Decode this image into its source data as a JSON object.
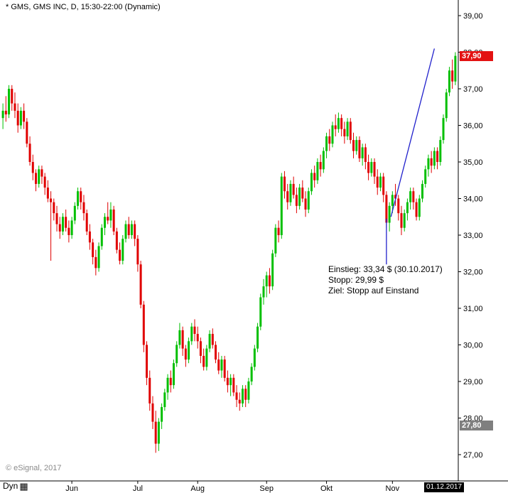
{
  "header": {
    "title": "* GMS, GMS INC, D, 15:30-22:00 (Dynamic)"
  },
  "footer": {
    "copyright": "© eSignal, 2017",
    "mode_label": "Dyn",
    "mode_icon": "▦",
    "date_tag": "01.12.2017"
  },
  "annotation": {
    "lines": [
      "Einstieg: 33,34 $ (30.10.2017)",
      "Stopp: 29,99 $",
      "Ziel: Stopp auf Einstand"
    ]
  },
  "tags": {
    "last": {
      "label": "37,90",
      "value": 37.9,
      "color": "#e31212"
    },
    "low": {
      "label": "27,80",
      "value": 27.8,
      "color": "#7f7f7f"
    }
  },
  "chart_data": {
    "type": "candlestick",
    "title": "GMS, GMS INC, D, 15:30-22:00 (Dynamic)",
    "symbol": "GMS",
    "interval": "D",
    "last_price": 37.9,
    "low_marker_price": 27.8,
    "colors": {
      "up": "#00bf00",
      "down": "#e00000",
      "line": "#2121cc",
      "axis": "#000000"
    },
    "y_axis": {
      "min": 27,
      "max": 39,
      "tick_step": 1,
      "ticks": [
        {
          "value": 39,
          "label": "39,00"
        },
        {
          "value": 38,
          "label": "38,00"
        },
        {
          "value": 37,
          "label": "37,00"
        },
        {
          "value": 36,
          "label": "36,00"
        },
        {
          "value": 35,
          "label": "35,00"
        },
        {
          "value": 34,
          "label": "34,00"
        },
        {
          "value": 33,
          "label": "33,00"
        },
        {
          "value": 32,
          "label": "32,00"
        },
        {
          "value": 31,
          "label": "31,00"
        },
        {
          "value": 30,
          "label": "30,00"
        },
        {
          "value": 29,
          "label": "29,00"
        },
        {
          "value": 28,
          "label": "28,00"
        },
        {
          "value": 27,
          "label": "27,00"
        }
      ]
    },
    "x_axis": {
      "months": [
        {
          "label": "Jun",
          "bar": 23
        },
        {
          "label": "Jul",
          "bar": 45
        },
        {
          "label": "Aug",
          "bar": 65
        },
        {
          "label": "Sep",
          "bar": 88
        },
        {
          "label": "Okt",
          "bar": 108
        },
        {
          "label": "Nov",
          "bar": 130
        }
      ],
      "end_date_label": "01.12.2017"
    },
    "overlays": {
      "trendline": {
        "from": {
          "bar": 129.5,
          "price": 33.5
        },
        "to": {
          "bar": 144,
          "price": 38.1
        }
      },
      "event_line": {
        "bar": 128,
        "price_from": 33.45,
        "price_to": 32.2
      }
    },
    "candles": [
      [
        36.2,
        36.6,
        35.9,
        36.4
      ],
      [
        36.4,
        36.8,
        36.1,
        36.3
      ],
      [
        36.3,
        37.1,
        36.2,
        37.0
      ],
      [
        37.0,
        37.1,
        36.4,
        36.6
      ],
      [
        36.6,
        36.9,
        36.2,
        36.4
      ],
      [
        36.4,
        36.6,
        35.8,
        36.0
      ],
      [
        36.0,
        36.5,
        35.9,
        36.4
      ],
      [
        36.4,
        36.6,
        35.9,
        36.1
      ],
      [
        36.1,
        36.2,
        35.4,
        35.5
      ],
      [
        35.5,
        35.7,
        34.9,
        35.0
      ],
      [
        35.0,
        35.2,
        34.5,
        34.7
      ],
      [
        34.7,
        34.8,
        34.2,
        34.4
      ],
      [
        34.4,
        34.9,
        34.3,
        34.8
      ],
      [
        34.8,
        34.9,
        34.4,
        34.6
      ],
      [
        34.6,
        34.7,
        34.1,
        34.3
      ],
      [
        34.3,
        34.5,
        33.9,
        34.0
      ],
      [
        34.0,
        34.2,
        32.3,
        33.9
      ],
      [
        33.9,
        34.0,
        33.4,
        33.6
      ],
      [
        33.6,
        33.8,
        33.1,
        33.3
      ],
      [
        33.3,
        33.5,
        32.9,
        33.1
      ],
      [
        33.1,
        33.6,
        33.0,
        33.5
      ],
      [
        33.5,
        33.7,
        33.1,
        33.2
      ],
      [
        33.2,
        33.4,
        32.8,
        33.0
      ],
      [
        33.0,
        33.5,
        32.9,
        33.4
      ],
      [
        33.4,
        33.9,
        33.3,
        33.8
      ],
      [
        33.8,
        34.3,
        33.7,
        34.2
      ],
      [
        34.2,
        34.3,
        33.7,
        33.9
      ],
      [
        33.9,
        34.1,
        33.4,
        33.6
      ],
      [
        33.6,
        33.7,
        33.0,
        33.1
      ],
      [
        33.1,
        33.3,
        32.6,
        32.8
      ],
      [
        32.8,
        32.9,
        32.2,
        32.4
      ],
      [
        32.4,
        32.6,
        31.9,
        32.1
      ],
      [
        32.1,
        32.8,
        32.0,
        32.7
      ],
      [
        32.7,
        33.3,
        32.6,
        33.2
      ],
      [
        33.2,
        33.6,
        33.0,
        33.5
      ],
      [
        33.5,
        33.9,
        33.3,
        33.4
      ],
      [
        33.4,
        33.9,
        33.2,
        33.7
      ],
      [
        33.7,
        33.8,
        33.0,
        33.1
      ],
      [
        33.1,
        33.2,
        32.5,
        32.6
      ],
      [
        32.6,
        32.8,
        32.2,
        32.3
      ],
      [
        32.3,
        33.0,
        32.2,
        32.9
      ],
      [
        32.9,
        33.4,
        32.8,
        33.3
      ],
      [
        33.3,
        33.5,
        32.9,
        33.0
      ],
      [
        33.0,
        33.4,
        32.9,
        33.3
      ],
      [
        33.3,
        33.4,
        32.7,
        32.9
      ],
      [
        32.9,
        33.0,
        32.0,
        32.2
      ],
      [
        32.2,
        32.3,
        31.0,
        31.1
      ],
      [
        31.1,
        31.2,
        29.8,
        30.0
      ],
      [
        30.0,
        30.1,
        28.9,
        29.1
      ],
      [
        29.1,
        29.3,
        28.2,
        28.4
      ],
      [
        28.4,
        28.6,
        27.7,
        27.9
      ],
      [
        27.9,
        28.2,
        27.05,
        27.3
      ],
      [
        27.3,
        28.0,
        27.1,
        27.9
      ],
      [
        27.9,
        28.4,
        27.7,
        28.3
      ],
      [
        28.3,
        28.8,
        28.2,
        28.7
      ],
      [
        28.7,
        29.2,
        28.5,
        29.1
      ],
      [
        29.1,
        29.3,
        28.7,
        28.9
      ],
      [
        28.9,
        29.6,
        28.8,
        29.5
      ],
      [
        29.5,
        30.1,
        29.4,
        30.0
      ],
      [
        30.0,
        30.6,
        29.9,
        30.4
      ],
      [
        30.4,
        30.5,
        29.7,
        29.9
      ],
      [
        29.9,
        30.0,
        29.4,
        29.6
      ],
      [
        29.6,
        30.2,
        29.5,
        30.1
      ],
      [
        30.1,
        30.6,
        30.0,
        30.5
      ],
      [
        30.5,
        30.7,
        30.1,
        30.3
      ],
      [
        30.3,
        30.5,
        29.9,
        30.1
      ],
      [
        30.1,
        30.2,
        29.5,
        29.7
      ],
      [
        29.7,
        29.9,
        29.3,
        29.4
      ],
      [
        29.4,
        30.0,
        29.3,
        29.9
      ],
      [
        29.9,
        30.4,
        29.8,
        30.3
      ],
      [
        30.3,
        30.45,
        29.9,
        30.0
      ],
      [
        30.0,
        30.1,
        29.5,
        29.6
      ],
      [
        29.6,
        29.8,
        29.2,
        29.3
      ],
      [
        29.3,
        29.7,
        29.1,
        29.6
      ],
      [
        29.6,
        29.7,
        29.0,
        29.1
      ],
      [
        29.1,
        29.3,
        28.7,
        28.9
      ],
      [
        28.9,
        29.2,
        28.6,
        29.1
      ],
      [
        29.1,
        29.2,
        28.6,
        28.7
      ],
      [
        28.7,
        28.9,
        28.3,
        28.5
      ],
      [
        28.5,
        28.7,
        28.2,
        28.4
      ],
      [
        28.4,
        28.9,
        28.3,
        28.8
      ],
      [
        28.8,
        28.9,
        28.3,
        28.5
      ],
      [
        28.5,
        29.1,
        28.4,
        29.0
      ],
      [
        29.0,
        29.5,
        28.9,
        29.4
      ],
      [
        29.4,
        30.0,
        29.3,
        29.9
      ],
      [
        29.9,
        30.6,
        29.8,
        30.5
      ],
      [
        30.5,
        31.4,
        30.4,
        31.3
      ],
      [
        31.3,
        31.8,
        31.1,
        31.6
      ],
      [
        31.6,
        32.0,
        31.3,
        31.9
      ],
      [
        31.9,
        32.1,
        31.4,
        31.6
      ],
      [
        31.6,
        32.6,
        31.5,
        32.5
      ],
      [
        32.5,
        33.3,
        32.4,
        33.2
      ],
      [
        33.2,
        33.4,
        32.8,
        33.0
      ],
      [
        33.0,
        34.7,
        32.9,
        34.6
      ],
      [
        34.6,
        34.75,
        34.0,
        34.2
      ],
      [
        34.2,
        34.4,
        33.7,
        33.9
      ],
      [
        33.9,
        34.5,
        33.8,
        34.4
      ],
      [
        34.4,
        34.6,
        34.0,
        34.1
      ],
      [
        34.1,
        34.3,
        33.6,
        33.8
      ],
      [
        33.8,
        34.4,
        33.7,
        34.3
      ],
      [
        34.3,
        34.5,
        33.9,
        34.0
      ],
      [
        34.0,
        34.2,
        33.5,
        33.7
      ],
      [
        33.7,
        34.3,
        33.6,
        34.2
      ],
      [
        34.2,
        34.8,
        34.1,
        34.7
      ],
      [
        34.7,
        34.9,
        34.3,
        34.5
      ],
      [
        34.5,
        35.1,
        34.4,
        35.0
      ],
      [
        35.0,
        35.2,
        34.6,
        34.8
      ],
      [
        34.8,
        35.4,
        34.7,
        35.3
      ],
      [
        35.3,
        35.8,
        35.1,
        35.7
      ],
      [
        35.7,
        35.9,
        35.3,
        35.5
      ],
      [
        35.5,
        36.1,
        35.4,
        36.0
      ],
      [
        36.0,
        36.3,
        35.7,
        35.9
      ],
      [
        35.9,
        36.35,
        35.8,
        36.2
      ],
      [
        36.2,
        36.3,
        35.7,
        35.9
      ],
      [
        35.9,
        36.1,
        35.5,
        35.7
      ],
      [
        35.7,
        36.2,
        35.6,
        36.1
      ],
      [
        36.1,
        36.2,
        35.5,
        35.6
      ],
      [
        35.6,
        35.8,
        35.1,
        35.3
      ],
      [
        35.3,
        35.7,
        35.2,
        35.6
      ],
      [
        35.6,
        35.7,
        35.0,
        35.1
      ],
      [
        35.1,
        35.5,
        34.9,
        35.4
      ],
      [
        35.4,
        35.5,
        34.8,
        35.0
      ],
      [
        35.0,
        35.2,
        34.5,
        34.7
      ],
      [
        34.7,
        35.1,
        34.6,
        35.0
      ],
      [
        35.0,
        35.1,
        34.4,
        34.6
      ],
      [
        34.6,
        34.8,
        34.1,
        34.3
      ],
      [
        34.3,
        34.7,
        34.2,
        34.6
      ],
      [
        34.6,
        34.7,
        33.9,
        34.1
      ],
      [
        34.1,
        34.2,
        33.2,
        33.34
      ],
      [
        33.34,
        33.9,
        33.1,
        33.8
      ],
      [
        33.8,
        34.2,
        33.6,
        34.1
      ],
      [
        34.1,
        34.4,
        33.8,
        34.0
      ],
      [
        34.0,
        34.1,
        33.4,
        33.6
      ],
      [
        33.6,
        33.8,
        33.0,
        33.2
      ],
      [
        33.2,
        33.7,
        33.1,
        33.6
      ],
      [
        33.6,
        34.0,
        33.4,
        33.9
      ],
      [
        33.9,
        34.3,
        33.7,
        34.2
      ],
      [
        34.2,
        34.3,
        33.7,
        33.9
      ],
      [
        33.9,
        34.0,
        33.4,
        33.5
      ],
      [
        33.5,
        34.1,
        33.4,
        34.0
      ],
      [
        34.0,
        34.5,
        33.9,
        34.4
      ],
      [
        34.4,
        34.9,
        34.3,
        34.8
      ],
      [
        34.8,
        35.2,
        34.6,
        35.1
      ],
      [
        35.1,
        35.3,
        34.7,
        34.9
      ],
      [
        34.9,
        35.4,
        34.8,
        35.3
      ],
      [
        35.3,
        35.4,
        34.8,
        35.0
      ],
      [
        35.0,
        35.7,
        34.9,
        35.6
      ],
      [
        35.6,
        36.3,
        35.5,
        36.2
      ],
      [
        36.2,
        37.0,
        36.1,
        36.9
      ],
      [
        36.9,
        37.6,
        36.8,
        37.5
      ],
      [
        37.5,
        37.8,
        37.0,
        37.2
      ],
      [
        37.2,
        38.0,
        37.1,
        37.9
      ]
    ]
  }
}
